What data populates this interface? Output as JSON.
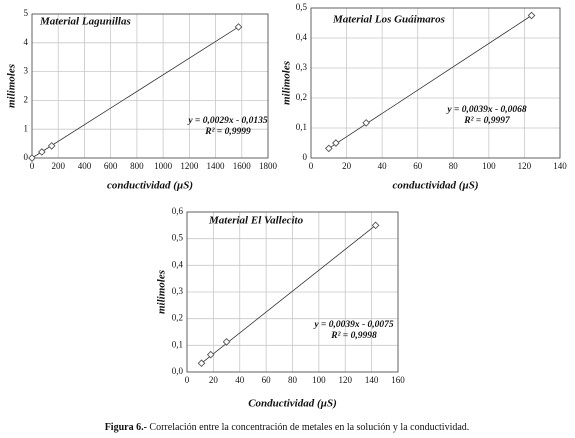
{
  "chart_data": [
    {
      "type": "scatter",
      "title": "Material Lagunillas",
      "x_label": "conductividad (µS)",
      "y_label": "milimoles",
      "equation": "y = 0,0029x - 0,0135",
      "r2": "R² = 0,9999",
      "x": [
        0,
        75,
        150,
        1575
      ],
      "values": [
        0,
        0.21,
        0.42,
        4.55
      ],
      "color": "#555555",
      "grid": true,
      "trendline": true,
      "xlim": [
        0,
        1800
      ],
      "xticks": [
        0,
        200,
        400,
        600,
        800,
        1000,
        1200,
        1400,
        1600,
        1800
      ],
      "ylim": [
        0,
        5
      ],
      "yticks": [
        0,
        1,
        2,
        3,
        4,
        5
      ]
    },
    {
      "type": "scatter",
      "title": "Material Los Guáimaros",
      "x_label": "conductividad (µS)",
      "y_label": "milimoles",
      "equation": "y = 0,0039x - 0,0068",
      "r2": "R² = 0,9997",
      "x": [
        10,
        14,
        31,
        124
      ],
      "values": [
        0.032,
        0.05,
        0.117,
        0.475
      ],
      "color": "#555555",
      "grid": true,
      "trendline": true,
      "xlim": [
        0,
        140
      ],
      "xticks": [
        0,
        20,
        40,
        60,
        80,
        100,
        120,
        140
      ],
      "ylim": [
        0,
        0.5
      ],
      "yticks": [
        0,
        {
          "value": 0.1,
          "label": "0,1"
        },
        {
          "value": 0.2,
          "label": "0,2"
        },
        {
          "value": 0.3,
          "label": "0,3"
        },
        {
          "value": 0.4,
          "label": "0,4"
        },
        {
          "value": 0.5,
          "label": "0,5"
        }
      ]
    },
    {
      "type": "scatter",
      "title": "Material El Vallecito",
      "x_label": "Conductividad (µS)",
      "y_label": "milimoles",
      "equation": "y = 0,0039x - 0,0075",
      "r2": "R² = 0,9998",
      "x": [
        11,
        18,
        30,
        143
      ],
      "values": [
        0.033,
        0.065,
        0.113,
        0.55
      ],
      "color": "#555555",
      "grid": true,
      "trendline": true,
      "xlim": [
        0,
        160
      ],
      "xticks": [
        0,
        20,
        40,
        60,
        80,
        100,
        120,
        140,
        160
      ],
      "ylim": [
        0,
        0.6
      ],
      "yticks": [
        {
          "value": 0,
          "label": "0,0"
        },
        {
          "value": 0.1,
          "label": "0,1"
        },
        {
          "value": 0.2,
          "label": "0,2"
        },
        {
          "value": 0.3,
          "label": "0,3"
        },
        {
          "value": 0.4,
          "label": "0,4"
        },
        {
          "value": 0.5,
          "label": "0,5"
        },
        {
          "value": 0.6,
          "label": "0,6"
        }
      ]
    }
  ],
  "caption": {
    "label": "Figura 6.-",
    "text": "Correlación entre la concentración de metales en la solución y la conductividad."
  }
}
